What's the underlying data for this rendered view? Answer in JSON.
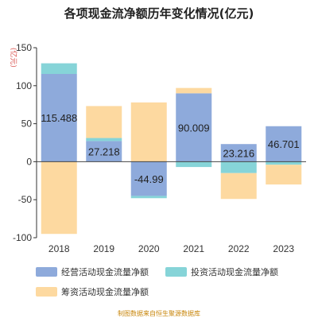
{
  "title": "各项现金流净额历年变化情况(亿元)",
  "footer": "制图数据来自恒生聚源数据库",
  "chart_data": {
    "type": "bar",
    "stacked": true,
    "title": "各项现金流净额历年变化情况(亿元)",
    "ylabel": "(亿元)",
    "ylim": [
      -100,
      150
    ],
    "yticks": [
      150,
      100,
      50,
      0,
      -50,
      -100
    ],
    "grid": false,
    "legend_position": "bottom",
    "categories": [
      "2018",
      "2019",
      "2020",
      "2021",
      "2022",
      "2023"
    ],
    "series": [
      {
        "name": "经营活动现金流量净额",
        "color": "#8eaadb",
        "values": [
          115.488,
          27.218,
          -44.99,
          90.009,
          23.216,
          46.701
        ]
      },
      {
        "name": "投资活动现金流量净额",
        "color": "#86d4d8",
        "values": [
          14,
          4,
          -3,
          -7,
          -15,
          -4
        ]
      },
      {
        "name": "筹资活动现金流量净额",
        "color": "#fdd9a0",
        "values": [
          -95,
          42,
          78,
          7,
          -34,
          -26
        ]
      }
    ],
    "data_labels": [
      "115.488",
      "27.218",
      "-44.99",
      "90.009",
      "23.216",
      "46.701"
    ]
  }
}
